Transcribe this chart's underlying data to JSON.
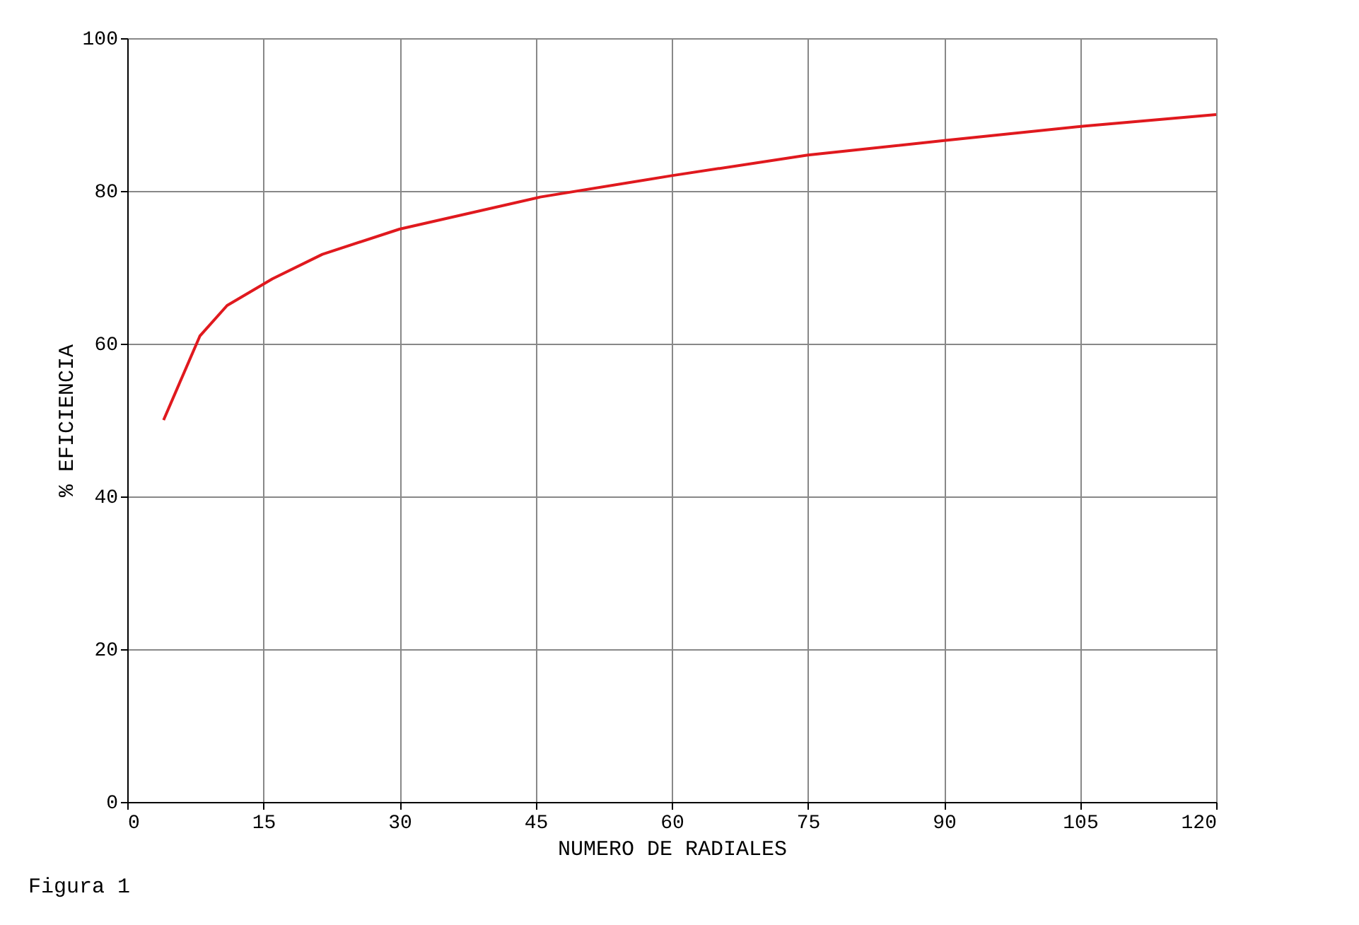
{
  "chart_data": {
    "type": "line",
    "xlabel": "NUMERO DE RADIALES",
    "ylabel": "% EFICIENCIA",
    "annotations": [
      "Figura 1"
    ],
    "series": [
      {
        "color": "#e0191e",
        "x": [
          4,
          8,
          11,
          16,
          21.5,
          30,
          45.5,
          60,
          75,
          90,
          105.5,
          120
        ],
        "values": [
          50,
          61,
          65,
          68.5,
          71.7,
          75,
          79.2,
          82,
          84.7,
          86.6,
          88.5,
          90
        ]
      }
    ],
    "xlim": [
      0,
      120
    ],
    "xticks": [
      0,
      15,
      30,
      45,
      60,
      75,
      90,
      105,
      120
    ],
    "ylim": [
      0,
      100
    ],
    "yticks": [
      0,
      20,
      40,
      60,
      80,
      100
    ],
    "grid": true,
    "marker": "none",
    "line_style": "solid"
  }
}
